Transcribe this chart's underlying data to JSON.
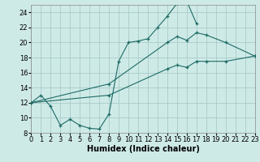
{
  "background_color": "#ceeae7",
  "grid_color": "#a8ccc8",
  "line_color": "#1e6b65",
  "xlim": [
    0,
    23
  ],
  "ylim": [
    8,
    25
  ],
  "xticks": [
    0,
    1,
    2,
    3,
    4,
    5,
    6,
    7,
    8,
    9,
    10,
    11,
    12,
    13,
    14,
    15,
    16,
    17,
    18,
    19,
    20,
    21,
    22,
    23
  ],
  "yticks": [
    8,
    10,
    12,
    14,
    16,
    18,
    20,
    22,
    24
  ],
  "xlabel": "Humidex (Indice chaleur)",
  "line1_x": [
    0,
    1,
    2,
    3,
    4,
    5,
    6,
    7,
    8,
    9,
    10,
    11,
    12,
    13,
    14,
    15,
    16,
    17
  ],
  "line1_y": [
    12,
    13,
    11.5,
    9,
    9.8,
    9.0,
    8.6,
    8.5,
    10.5,
    17.5,
    20.0,
    20.2,
    20.5,
    22.0,
    23.5,
    25.2,
    25.5,
    22.5
  ],
  "line2_x": [
    0,
    8,
    14,
    15,
    16,
    17,
    18,
    20,
    23
  ],
  "line2_y": [
    12,
    14.5,
    20.0,
    20.8,
    20.3,
    21.3,
    21.0,
    20.0,
    18.2
  ],
  "line3_x": [
    0,
    8,
    14,
    15,
    16,
    17,
    18,
    20,
    23
  ],
  "line3_y": [
    12,
    13.0,
    16.5,
    17.0,
    16.7,
    17.5,
    17.5,
    17.5,
    18.2
  ],
  "fontsize_label": 7,
  "fontsize_tick": 6
}
